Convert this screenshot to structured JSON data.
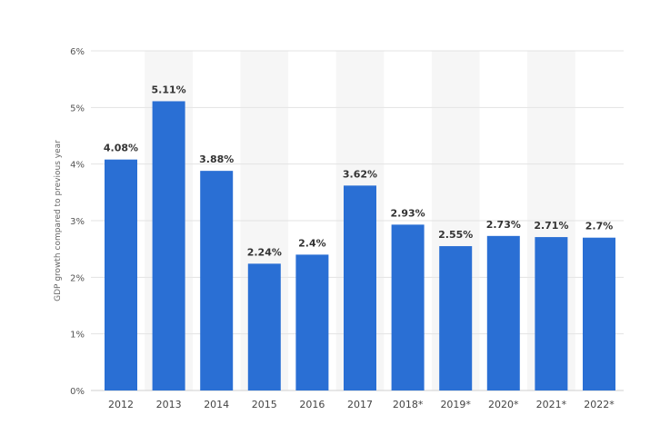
{
  "chart_data": {
    "type": "bar",
    "categories": [
      "2012",
      "2013",
      "2014",
      "2015",
      "2016",
      "2017",
      "2018*",
      "2019*",
      "2020*",
      "2021*",
      "2022*"
    ],
    "values": [
      4.08,
      5.11,
      3.88,
      2.24,
      2.4,
      3.62,
      2.93,
      2.55,
      2.73,
      2.71,
      2.7
    ],
    "value_labels": [
      "4.08%",
      "5.11%",
      "3.88%",
      "2.24%",
      "2.4%",
      "3.62%",
      "2.93%",
      "2.55%",
      "2.73%",
      "2.71%",
      "2.7%"
    ],
    "title": "",
    "xlabel": "",
    "ylabel": "GDP growth compared to previous year",
    "ylim": [
      0,
      6
    ],
    "yticks": [
      0,
      1,
      2,
      3,
      4,
      5,
      6
    ],
    "ytick_labels": [
      "0%",
      "1%",
      "2%",
      "3%",
      "4%",
      "5%",
      "6%"
    ],
    "grid": true,
    "legend": "none",
    "colors": {
      "bar": "#2a6fd4",
      "band": "#f6f6f6",
      "grid": "#e3e3e3"
    }
  }
}
